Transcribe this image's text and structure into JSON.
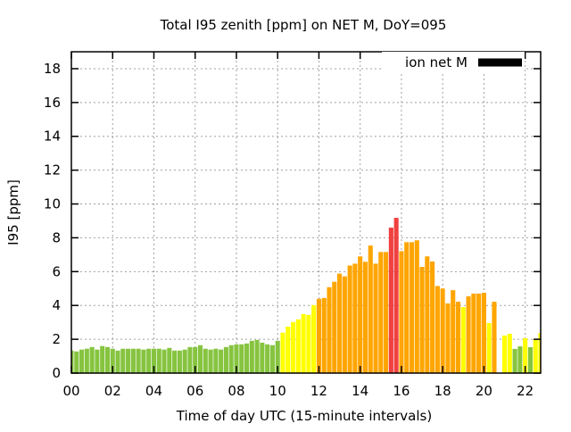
{
  "chart_data": {
    "type": "bar",
    "title": "Total I95 zenith [ppm] on NET M, DoY=095",
    "xlabel": "Time of day UTC (15-minute intervals)",
    "ylabel": "I95 [ppm]",
    "xlim": [
      0,
      22.75
    ],
    "ylim": [
      0,
      19
    ],
    "xticks": [
      "00",
      "02",
      "04",
      "06",
      "08",
      "10",
      "12",
      "14",
      "16",
      "18",
      "20",
      "22"
    ],
    "yticks": [
      "0",
      "2",
      "4",
      "6",
      "8",
      "10",
      "12",
      "14",
      "16",
      "18"
    ],
    "grid": true,
    "legend": {
      "label": "ion net M",
      "color": "#000000",
      "placement": "top-right"
    },
    "interval_hours": 0.25,
    "colors": {
      "g": "#86c440",
      "y": "#ffff00",
      "o": "#ffa500",
      "r": "#f04040"
    },
    "values": [
      1.33,
      1.28,
      1.39,
      1.44,
      1.54,
      1.39,
      1.6,
      1.54,
      1.44,
      1.33,
      1.44,
      1.44,
      1.44,
      1.44,
      1.39,
      1.44,
      1.44,
      1.44,
      1.39,
      1.49,
      1.33,
      1.33,
      1.39,
      1.54,
      1.54,
      1.65,
      1.44,
      1.39,
      1.44,
      1.39,
      1.54,
      1.65,
      1.7,
      1.7,
      1.75,
      1.91,
      1.96,
      1.8,
      1.7,
      1.65,
      1.91,
      2.39,
      2.75,
      3.02,
      3.18,
      3.49,
      3.44,
      4.02,
      4.39,
      4.44,
      5.08,
      5.4,
      5.88,
      5.72,
      6.36,
      6.47,
      6.9,
      6.58,
      7.54,
      6.47,
      7.16,
      7.16,
      8.6,
      9.18,
      7.21,
      7.74,
      7.74,
      7.85,
      6.28,
      6.9,
      6.6,
      5.15,
      5.0,
      4.12,
      4.9,
      4.22,
      3.9,
      4.54,
      4.7,
      4.7,
      4.75,
      2.96,
      4.22,
      null,
      2.22,
      2.32,
      1.43,
      1.58,
      2.06,
      1.53,
      2.0,
      2.37
    ],
    "levels": "gggggggggggggggggggggggggggggggggggggggggyyyyyyyoooooooooooooorrooooooooooooyoooo yo-yygg ygyy"
  }
}
